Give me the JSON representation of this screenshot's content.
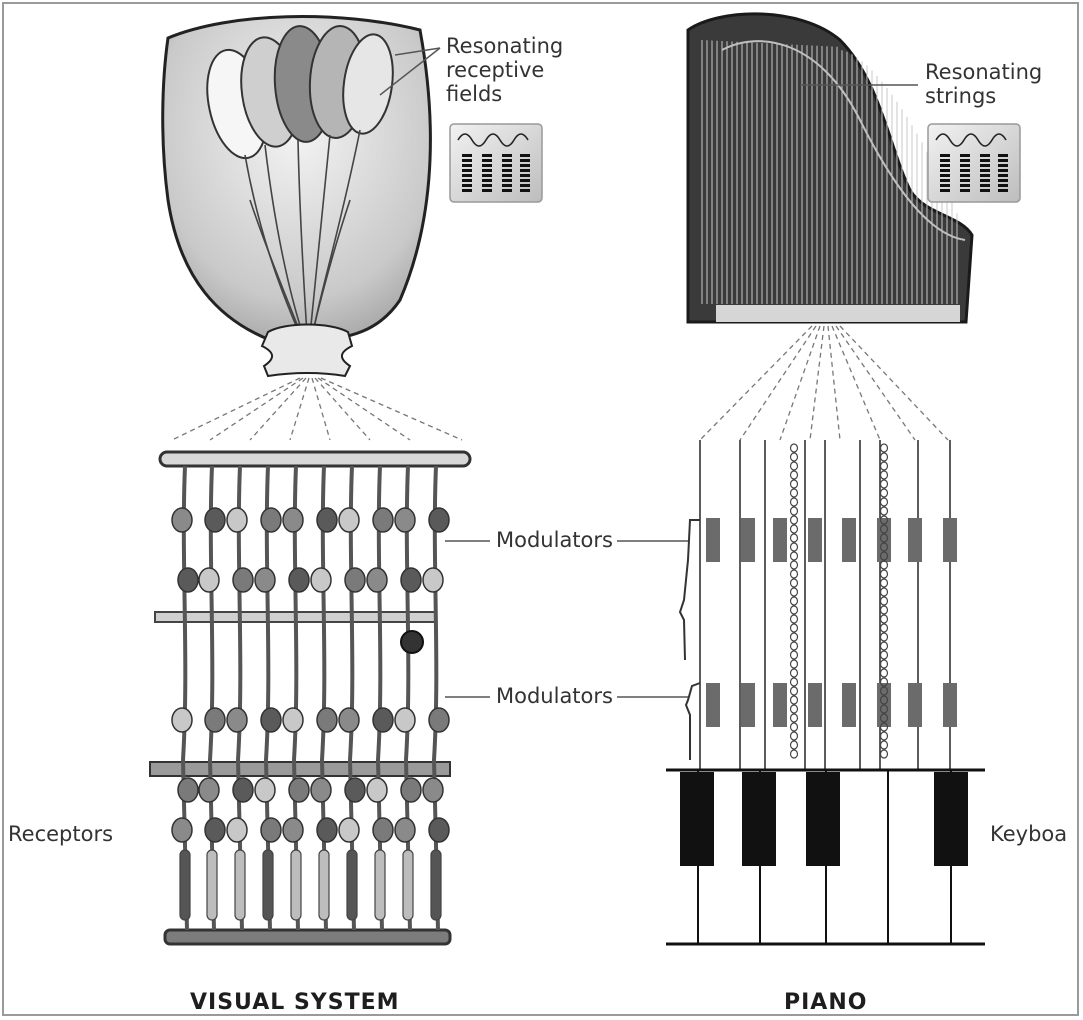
{
  "labels": {
    "resonating_fields": "Resonating\nreceptive\nfields",
    "resonating_strings": "Resonating\nstrings",
    "modulators_top": "Modulators",
    "modulators_bottom": "Modulators",
    "receptors": "Receptors",
    "keyboard": "Keyboa"
  },
  "titles": {
    "left": "VISUAL SYSTEM",
    "right": "PIANO"
  },
  "icons": {
    "wave_box_left": "resonance-wave-icon",
    "wave_box_right": "resonance-wave-icon"
  }
}
